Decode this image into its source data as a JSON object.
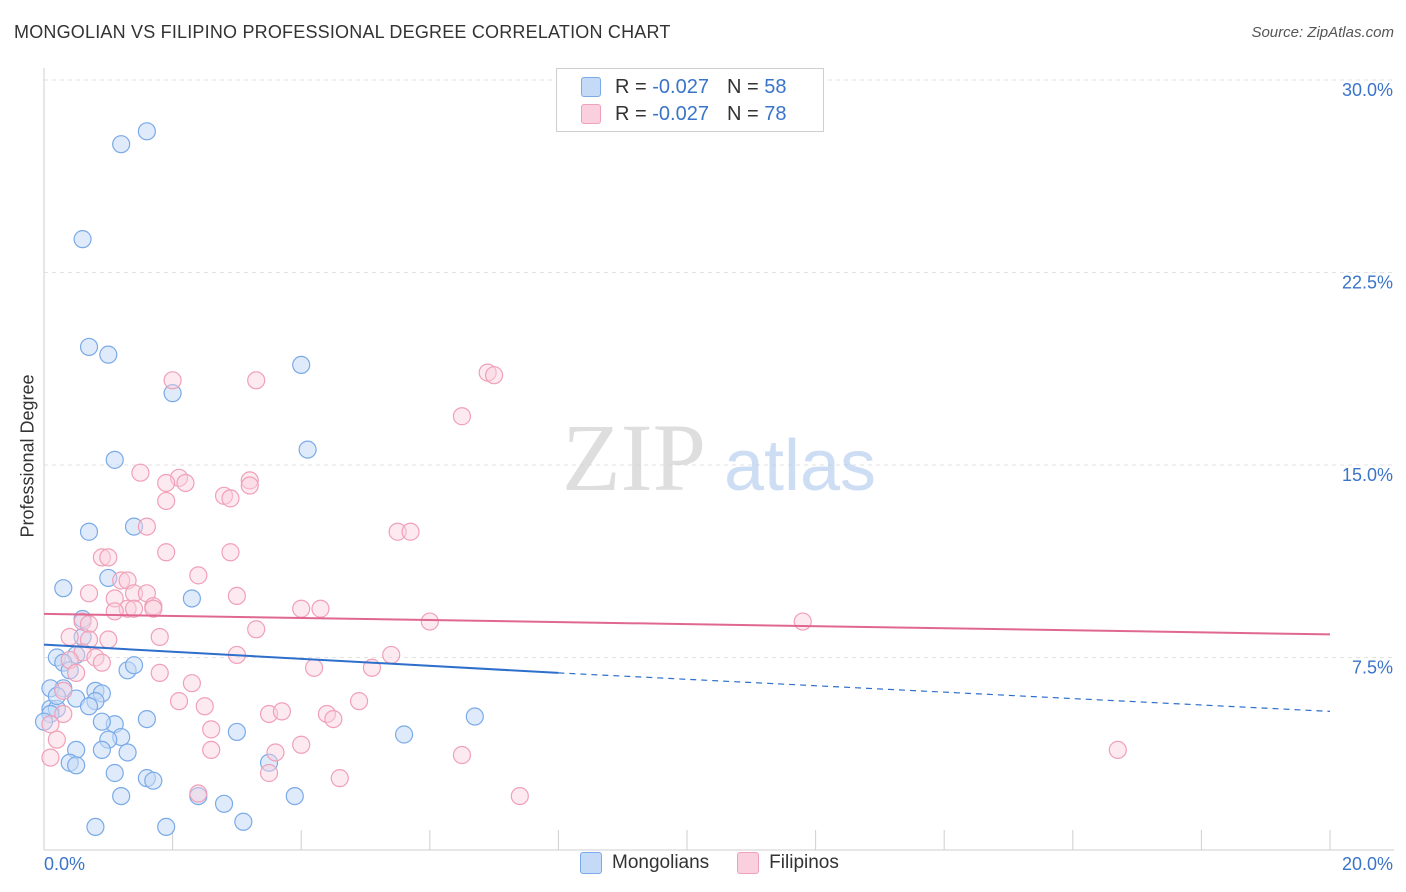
{
  "title": "MONGOLIAN VS FILIPINO PROFESSIONAL DEGREE CORRELATION CHART",
  "source": "Source: ZipAtlas.com",
  "watermark": {
    "zip": "ZIP",
    "atlas": "atlas"
  },
  "legend": {
    "series1": {
      "r_label": "R = ",
      "r_value": "-0.027",
      "n_label": "N = ",
      "n_value": "58"
    },
    "series2": {
      "r_label": "R = ",
      "r_value": "-0.027",
      "n_label": "N = ",
      "n_value": "78"
    }
  },
  "bottom_legend": {
    "series1": "Mongolians",
    "series2": "Filipinos"
  },
  "chart_data": {
    "type": "scatter",
    "title": "MONGOLIAN VS FILIPINO PROFESSIONAL DEGREE CORRELATION CHART",
    "xlabel": "",
    "ylabel": "Professional Degree",
    "xlim": [
      0,
      20
    ],
    "ylim": [
      0,
      30
    ],
    "x_tick_labels": [
      "0.0%",
      "20.0%"
    ],
    "y_ticks": [
      7.5,
      15.0,
      22.5,
      30.0
    ],
    "y_tick_labels": [
      "7.5%",
      "15.0%",
      "22.5%",
      "30.0%"
    ],
    "grid": true,
    "colors": {
      "Mongolians": "#7aaae8",
      "Filipinos": "#f0a0b8",
      "mongolians_line": "#2e6fcc",
      "filipinos_line": "#e06890",
      "tick_text": "#3a74c9"
    },
    "series": [
      {
        "name": "Mongolians",
        "trend": {
          "x": [
            0,
            8
          ],
          "y": [
            8.0,
            6.9
          ],
          "dashed_to": [
            20,
            5.4
          ]
        },
        "points": [
          [
            1.2,
            27.5
          ],
          [
            1.6,
            28.0
          ],
          [
            0.6,
            23.8
          ],
          [
            0.7,
            19.6
          ],
          [
            1.0,
            19.3
          ],
          [
            2.0,
            17.8
          ],
          [
            4.0,
            18.9
          ],
          [
            1.1,
            15.2
          ],
          [
            4.1,
            15.6
          ],
          [
            0.7,
            12.4
          ],
          [
            1.4,
            12.6
          ],
          [
            0.3,
            10.2
          ],
          [
            1.0,
            10.6
          ],
          [
            2.3,
            9.8
          ],
          [
            0.6,
            9.0
          ],
          [
            0.6,
            8.3
          ],
          [
            0.5,
            7.6
          ],
          [
            0.2,
            7.5
          ],
          [
            0.3,
            7.3
          ],
          [
            0.4,
            7.0
          ],
          [
            1.3,
            7.0
          ],
          [
            1.4,
            7.2
          ],
          [
            0.3,
            6.3
          ],
          [
            0.1,
            6.3
          ],
          [
            0.8,
            6.2
          ],
          [
            0.9,
            6.1
          ],
          [
            0.8,
            5.8
          ],
          [
            0.5,
            5.9
          ],
          [
            0.7,
            5.6
          ],
          [
            0.1,
            5.5
          ],
          [
            0.2,
            5.5
          ],
          [
            1.1,
            4.9
          ],
          [
            1.6,
            5.1
          ],
          [
            0.9,
            5.0
          ],
          [
            3.0,
            4.6
          ],
          [
            5.6,
            4.5
          ],
          [
            6.7,
            5.2
          ],
          [
            1.2,
            4.4
          ],
          [
            1.0,
            4.3
          ],
          [
            0.5,
            3.9
          ],
          [
            0.9,
            3.9
          ],
          [
            1.3,
            3.8
          ],
          [
            0.4,
            3.4
          ],
          [
            0.5,
            3.3
          ],
          [
            3.5,
            3.4
          ],
          [
            1.1,
            3.0
          ],
          [
            1.6,
            2.8
          ],
          [
            1.7,
            2.7
          ],
          [
            1.2,
            2.1
          ],
          [
            2.4,
            2.1
          ],
          [
            2.8,
            1.8
          ],
          [
            3.9,
            2.1
          ],
          [
            0.8,
            0.9
          ],
          [
            1.9,
            0.9
          ],
          [
            3.1,
            1.1
          ],
          [
            0.1,
            5.3
          ],
          [
            0.2,
            6.0
          ],
          [
            0.0,
            5.0
          ]
        ]
      },
      {
        "name": "Filipinos",
        "trend": {
          "x": [
            0,
            20
          ],
          "y": [
            9.2,
            8.4
          ]
        },
        "points": [
          [
            6.9,
            18.6
          ],
          [
            7.0,
            18.5
          ],
          [
            2.0,
            18.3
          ],
          [
            3.3,
            18.3
          ],
          [
            6.5,
            16.9
          ],
          [
            1.5,
            14.7
          ],
          [
            2.1,
            14.5
          ],
          [
            2.2,
            14.3
          ],
          [
            1.9,
            14.3
          ],
          [
            3.2,
            14.4
          ],
          [
            3.2,
            14.2
          ],
          [
            2.8,
            13.8
          ],
          [
            2.9,
            13.7
          ],
          [
            1.9,
            13.6
          ],
          [
            1.6,
            12.6
          ],
          [
            5.5,
            12.4
          ],
          [
            5.7,
            12.4
          ],
          [
            1.9,
            11.6
          ],
          [
            2.9,
            11.6
          ],
          [
            0.9,
            11.4
          ],
          [
            1.0,
            11.4
          ],
          [
            2.4,
            10.7
          ],
          [
            1.2,
            10.5
          ],
          [
            1.3,
            10.5
          ],
          [
            0.7,
            10.0
          ],
          [
            1.4,
            10.0
          ],
          [
            1.6,
            10.0
          ],
          [
            3.0,
            9.9
          ],
          [
            1.1,
            9.8
          ],
          [
            1.7,
            9.5
          ],
          [
            1.3,
            9.4
          ],
          [
            1.4,
            9.4
          ],
          [
            1.7,
            9.4
          ],
          [
            1.1,
            9.3
          ],
          [
            4.0,
            9.4
          ],
          [
            4.3,
            9.4
          ],
          [
            0.6,
            8.9
          ],
          [
            0.7,
            8.8
          ],
          [
            6.0,
            8.9
          ],
          [
            11.8,
            8.9
          ],
          [
            3.3,
            8.6
          ],
          [
            0.4,
            8.3
          ],
          [
            0.7,
            8.2
          ],
          [
            1.0,
            8.2
          ],
          [
            1.8,
            8.3
          ],
          [
            0.6,
            7.7
          ],
          [
            0.8,
            7.5
          ],
          [
            0.4,
            7.4
          ],
          [
            0.9,
            7.3
          ],
          [
            3.0,
            7.6
          ],
          [
            5.4,
            7.6
          ],
          [
            4.2,
            7.1
          ],
          [
            5.1,
            7.1
          ],
          [
            1.8,
            6.9
          ],
          [
            0.5,
            6.9
          ],
          [
            2.3,
            6.5
          ],
          [
            0.3,
            6.2
          ],
          [
            2.1,
            5.8
          ],
          [
            4.9,
            5.8
          ],
          [
            2.5,
            5.6
          ],
          [
            3.5,
            5.3
          ],
          [
            3.7,
            5.4
          ],
          [
            4.4,
            5.3
          ],
          [
            4.5,
            5.1
          ],
          [
            0.3,
            5.3
          ],
          [
            2.6,
            4.7
          ],
          [
            2.6,
            3.9
          ],
          [
            3.6,
            3.8
          ],
          [
            4.0,
            4.1
          ],
          [
            6.5,
            3.7
          ],
          [
            16.7,
            3.9
          ],
          [
            3.5,
            3.0
          ],
          [
            4.6,
            2.8
          ],
          [
            2.4,
            2.2
          ],
          [
            7.4,
            2.1
          ],
          [
            0.1,
            3.6
          ],
          [
            0.2,
            4.3
          ],
          [
            0.1,
            4.9
          ]
        ]
      }
    ]
  }
}
